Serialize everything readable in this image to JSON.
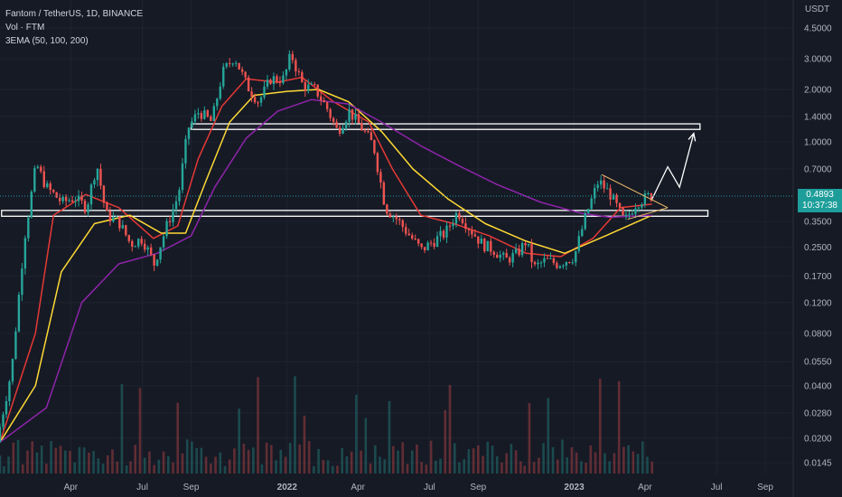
{
  "header": {
    "symbol_line": "Fantom / TetherUS, 1D, BINANCE",
    "volume_line": "Vol · FTM",
    "ema_line": "3EMA (50, 100, 200)"
  },
  "price_axis": {
    "unit": "USDT",
    "current_price": "0.4893",
    "countdown": "10:37:38"
  },
  "colors": {
    "background": "#161a25",
    "grid": "#1f2330",
    "up_candle": "#26a69a",
    "down_candle": "#ef5350",
    "ema_50": "#e53935",
    "ema_100": "#fdd835",
    "ema_200": "#8e24aa",
    "price_line": "#1e9e9a",
    "annotation": "#ffffff"
  },
  "chart_data": {
    "type": "candlestick",
    "y_scale": "log",
    "y_ticks": [
      "4.5000",
      "3.0000",
      "2.0000",
      "1.4000",
      "1.0000",
      "0.7000",
      "0.3500",
      "0.2500",
      "0.1700",
      "0.1200",
      "0.0800",
      "0.0550",
      "0.0400",
      "0.0280",
      "0.0200",
      "0.0145"
    ],
    "x_ticks": [
      "Apr",
      "Jul",
      "Sep",
      "2022",
      "Apr",
      "Jul",
      "Sep",
      "2023",
      "Apr",
      "Jul",
      "Sep"
    ],
    "series": [
      {
        "name": "Price",
        "points": [
          [
            "2021-01-01",
            0.019
          ],
          [
            "2021-01-20",
            0.05
          ],
          [
            "2021-02-05",
            0.28
          ],
          [
            "2021-02-20",
            0.75
          ],
          [
            "2021-03-05",
            0.55
          ],
          [
            "2021-03-25",
            0.45
          ],
          [
            "2021-04-10",
            0.48
          ],
          [
            "2021-04-25",
            0.42
          ],
          [
            "2021-05-08",
            0.75
          ],
          [
            "2021-05-20",
            0.38
          ],
          [
            "2021-06-05",
            0.35
          ],
          [
            "2021-06-20",
            0.26
          ],
          [
            "2021-07-05",
            0.28
          ],
          [
            "2021-07-20",
            0.2
          ],
          [
            "2021-08-05",
            0.33
          ],
          [
            "2021-08-20",
            0.5
          ],
          [
            "2021-09-01",
            1.2
          ],
          [
            "2021-09-15",
            1.5
          ],
          [
            "2021-10-01",
            1.3
          ],
          [
            "2021-10-15",
            2.5
          ],
          [
            "2021-10-30",
            3.1
          ],
          [
            "2021-11-15",
            2.1
          ],
          [
            "2021-11-30",
            1.7
          ],
          [
            "2021-12-15",
            2.3
          ],
          [
            "2022-01-01",
            2.3
          ],
          [
            "2022-01-10",
            3.2
          ],
          [
            "2022-01-25",
            2.1
          ],
          [
            "2022-02-10",
            2.0
          ],
          [
            "2022-02-25",
            1.55
          ],
          [
            "2022-03-10",
            1.15
          ],
          [
            "2022-03-25",
            1.5
          ],
          [
            "2022-04-10",
            1.2
          ],
          [
            "2022-04-25",
            0.95
          ],
          [
            "2022-05-10",
            0.42
          ],
          [
            "2022-05-25",
            0.36
          ],
          [
            "2022-06-10",
            0.29
          ],
          [
            "2022-06-25",
            0.24
          ],
          [
            "2022-07-10",
            0.27
          ],
          [
            "2022-07-25",
            0.3
          ],
          [
            "2022-08-10",
            0.4
          ],
          [
            "2022-08-25",
            0.32
          ],
          [
            "2022-09-10",
            0.26
          ],
          [
            "2022-09-25",
            0.24
          ],
          [
            "2022-10-10",
            0.21
          ],
          [
            "2022-10-25",
            0.23
          ],
          [
            "2022-11-05",
            0.27
          ],
          [
            "2022-11-15",
            0.19
          ],
          [
            "2022-11-30",
            0.21
          ],
          [
            "2022-12-15",
            0.2
          ],
          [
            "2023-01-05",
            0.22
          ],
          [
            "2023-01-20",
            0.38
          ],
          [
            "2023-02-05",
            0.6
          ],
          [
            "2023-02-20",
            0.5
          ],
          [
            "2023-03-10",
            0.35
          ],
          [
            "2023-03-25",
            0.45
          ],
          [
            "2023-04-10",
            0.4893
          ]
        ]
      },
      {
        "name": "EMA 50",
        "points": [
          [
            "2021-01-01",
            0.019
          ],
          [
            "2021-02-15",
            0.08
          ],
          [
            "2021-03-10",
            0.38
          ],
          [
            "2021-04-20",
            0.5
          ],
          [
            "2021-06-01",
            0.42
          ],
          [
            "2021-07-15",
            0.28
          ],
          [
            "2021-08-15",
            0.33
          ],
          [
            "2021-09-10",
            0.8
          ],
          [
            "2021-10-10",
            1.6
          ],
          [
            "2021-11-10",
            2.3
          ],
          [
            "2021-12-20",
            2.2
          ],
          [
            "2022-01-20",
            2.35
          ],
          [
            "2022-03-01",
            1.7
          ],
          [
            "2022-04-15",
            1.3
          ],
          [
            "2022-05-15",
            0.7
          ],
          [
            "2022-06-20",
            0.38
          ],
          [
            "2022-08-01",
            0.34
          ],
          [
            "2022-09-15",
            0.29
          ],
          [
            "2022-11-01",
            0.23
          ],
          [
            "2022-12-15",
            0.22
          ],
          [
            "2023-01-25",
            0.28
          ],
          [
            "2023-03-01",
            0.42
          ],
          [
            "2023-04-10",
            0.44
          ]
        ]
      },
      {
        "name": "EMA 100",
        "points": [
          [
            "2021-01-01",
            0.019
          ],
          [
            "2021-02-15",
            0.04
          ],
          [
            "2021-03-20",
            0.18
          ],
          [
            "2021-05-01",
            0.34
          ],
          [
            "2021-06-15",
            0.38
          ],
          [
            "2021-07-25",
            0.3
          ],
          [
            "2021-08-25",
            0.3
          ],
          [
            "2021-09-20",
            0.6
          ],
          [
            "2021-10-20",
            1.3
          ],
          [
            "2021-11-20",
            1.85
          ],
          [
            "2022-01-01",
            1.95
          ],
          [
            "2022-02-10",
            2.0
          ],
          [
            "2022-03-20",
            1.7
          ],
          [
            "2022-05-01",
            1.15
          ],
          [
            "2022-06-10",
            0.7
          ],
          [
            "2022-07-25",
            0.47
          ],
          [
            "2022-09-10",
            0.34
          ],
          [
            "2022-11-01",
            0.27
          ],
          [
            "2022-12-20",
            0.23
          ],
          [
            "2023-02-10",
            0.29
          ],
          [
            "2023-04-10",
            0.38
          ]
        ]
      },
      {
        "name": "EMA 200",
        "points": [
          [
            "2021-01-01",
            0.019
          ],
          [
            "2021-03-01",
            0.03
          ],
          [
            "2021-04-15",
            0.12
          ],
          [
            "2021-06-01",
            0.2
          ],
          [
            "2021-07-20",
            0.23
          ],
          [
            "2021-09-01",
            0.29
          ],
          [
            "2021-10-01",
            0.55
          ],
          [
            "2021-11-10",
            1.05
          ],
          [
            "2021-12-20",
            1.5
          ],
          [
            "2022-02-01",
            1.75
          ],
          [
            "2022-03-20",
            1.65
          ],
          [
            "2022-05-01",
            1.3
          ],
          [
            "2022-06-20",
            0.95
          ],
          [
            "2022-08-10",
            0.72
          ],
          [
            "2022-09-25",
            0.57
          ],
          [
            "2022-11-20",
            0.45
          ],
          [
            "2023-01-10",
            0.39
          ],
          [
            "2023-02-15",
            0.37
          ],
          [
            "2023-04-10",
            0.38
          ]
        ]
      }
    ],
    "volume_bars": 140,
    "annotations": {
      "resistance_zone": {
        "low": 1.18,
        "high": 1.27,
        "from": "2021-09-01",
        "to": "2023-06-10"
      },
      "support_zone": {
        "low": 0.375,
        "high": 0.405,
        "from": "2021-01-03",
        "to": "2023-06-20"
      },
      "triangle_upper": [
        [
          "2023-02-05",
          0.65
        ],
        [
          "2023-04-30",
          0.42
        ]
      ],
      "triangle_lower": [
        [
          "2023-03-10",
          0.36
        ],
        [
          "2023-04-30",
          0.42
        ]
      ],
      "projection_arrow": [
        [
          "2023-04-10",
          0.47
        ],
        [
          "2023-04-30",
          0.72
        ],
        [
          "2023-05-15",
          0.55
        ],
        [
          "2023-06-02",
          1.12
        ]
      ]
    }
  }
}
